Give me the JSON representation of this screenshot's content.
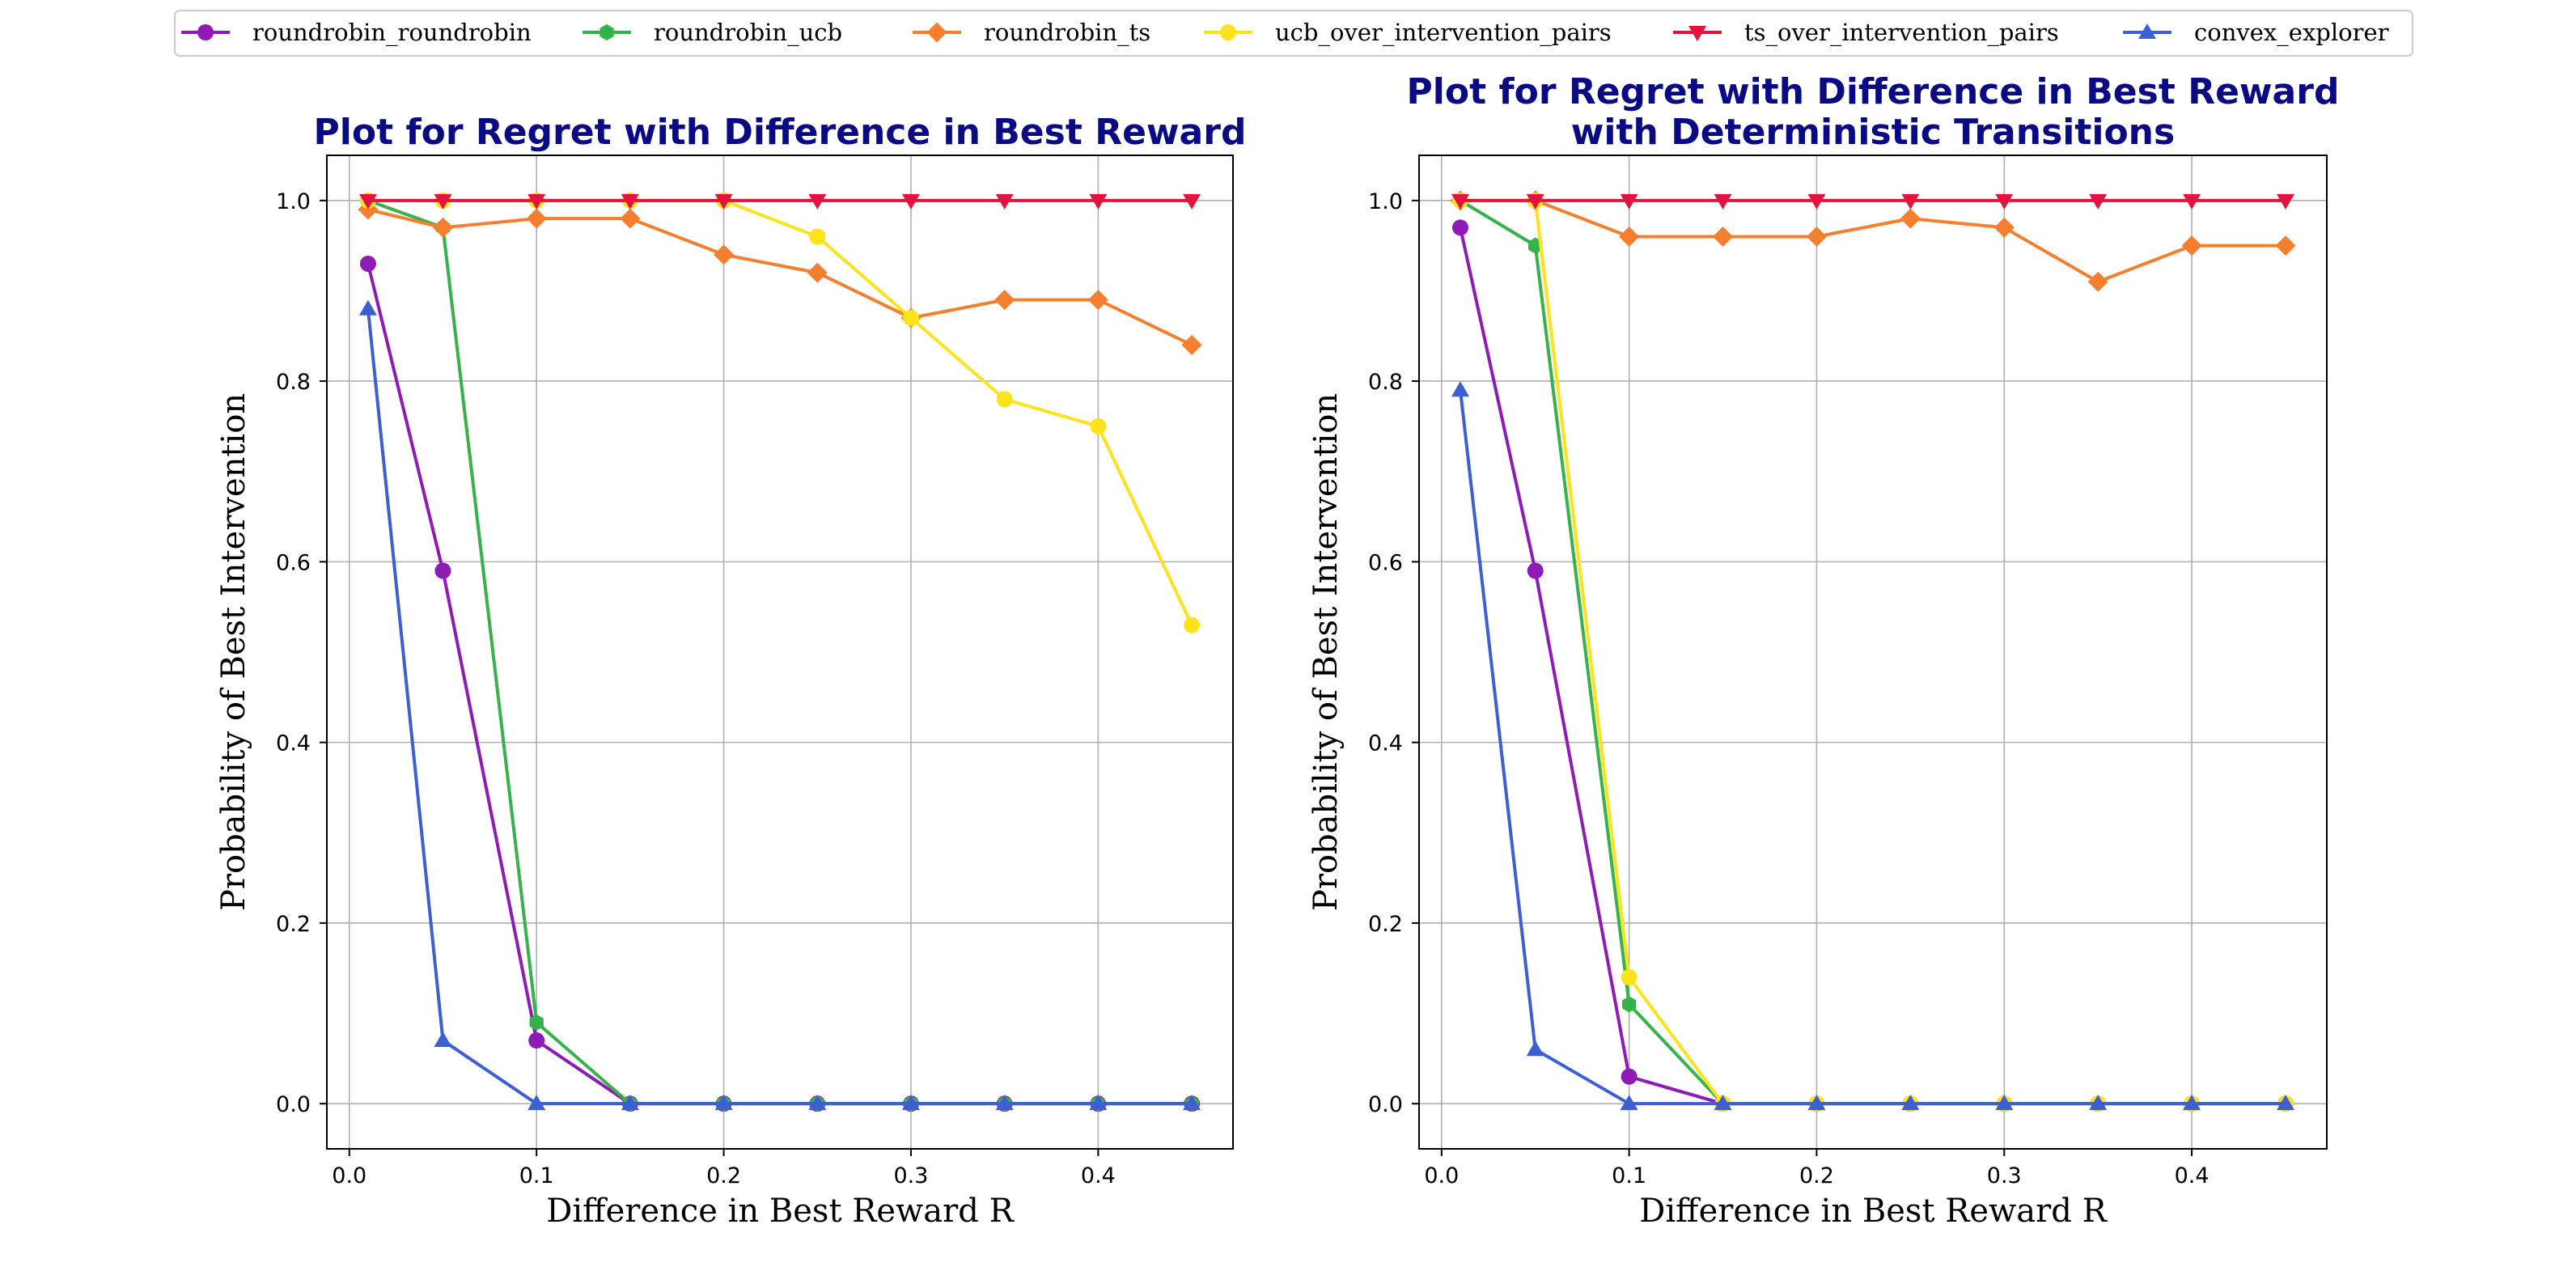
{
  "legend": {
    "entries": [
      {
        "name": "roundrobin_roundrobin",
        "color": "#8e1bb5",
        "marker": "circle"
      },
      {
        "name": "roundrobin_ucb",
        "color": "#36b24a",
        "marker": "hexagon"
      },
      {
        "name": "roundrobin_ts",
        "color": "#f57f2e",
        "marker": "diamond"
      },
      {
        "name": "ucb_over_intervention_pairs",
        "color": "#fde31c",
        "marker": "circle"
      },
      {
        "name": "ts_over_intervention_pairs",
        "color": "#e3133f",
        "marker": "triangle-down"
      },
      {
        "name": "convex_explorer",
        "color": "#3d5fd4",
        "marker": "triangle-up"
      }
    ],
    "placement": "top-center"
  },
  "chart_data": [
    {
      "type": "line",
      "title": "Plot for Regret with Difference in Best Reward",
      "title_lines": [
        "Plot for Regret with Difference in Best Reward"
      ],
      "title_color": "#0a0a85",
      "xlabel": "Difference in Best Reward R",
      "ylabel": "Probability of Best Intervention",
      "xlim": [
        -0.012,
        0.472
      ],
      "ylim": [
        -0.05,
        1.05
      ],
      "xticks": [
        0.0,
        0.1,
        0.2,
        0.3,
        0.4
      ],
      "xtick_labels": [
        "0.0",
        "0.1",
        "0.2",
        "0.3",
        "0.4"
      ],
      "yticks": [
        0.0,
        0.2,
        0.4,
        0.6,
        0.8,
        1.0
      ],
      "ytick_labels": [
        "0.0",
        "0.2",
        "0.4",
        "0.6",
        "0.8",
        "1.0"
      ],
      "grid": true,
      "x": [
        0.01,
        0.05,
        0.1,
        0.15,
        0.2,
        0.25,
        0.3,
        0.35,
        0.4,
        0.45
      ],
      "series": [
        {
          "name": "roundrobin_roundrobin",
          "values": [
            0.93,
            0.59,
            0.07,
            0.0,
            0.0,
            0.0,
            0.0,
            0.0,
            0.0,
            0.0
          ]
        },
        {
          "name": "roundrobin_ucb",
          "values": [
            1.0,
            0.97,
            0.09,
            0.0,
            0.0,
            0.0,
            0.0,
            0.0,
            0.0,
            0.0
          ]
        },
        {
          "name": "roundrobin_ts",
          "values": [
            0.99,
            0.97,
            0.98,
            0.98,
            0.94,
            0.92,
            0.87,
            0.89,
            0.89,
            0.84
          ]
        },
        {
          "name": "ucb_over_intervention_pairs",
          "values": [
            1.0,
            1.0,
            1.0,
            1.0,
            1.0,
            0.96,
            0.87,
            0.78,
            0.75,
            0.53
          ]
        },
        {
          "name": "ts_over_intervention_pairs",
          "values": [
            1.0,
            1.0,
            1.0,
            1.0,
            1.0,
            1.0,
            1.0,
            1.0,
            1.0,
            1.0
          ]
        },
        {
          "name": "convex_explorer",
          "values": [
            0.88,
            0.07,
            0.0,
            0.0,
            0.0,
            0.0,
            0.0,
            0.0,
            0.0,
            0.0
          ]
        }
      ]
    },
    {
      "type": "line",
      "title": "Plot for Regret with Difference in Best Reward with Deterministic Transitions",
      "title_lines": [
        "Plot for Regret with Difference in Best Reward",
        "with Deterministic Transitions"
      ],
      "title_color": "#0a0a85",
      "xlabel": "Difference in Best Reward R",
      "ylabel": "Probability of Best Intervention",
      "xlim": [
        -0.012,
        0.472
      ],
      "ylim": [
        -0.05,
        1.05
      ],
      "xticks": [
        0.0,
        0.1,
        0.2,
        0.3,
        0.4
      ],
      "xtick_labels": [
        "0.0",
        "0.1",
        "0.2",
        "0.3",
        "0.4"
      ],
      "yticks": [
        0.0,
        0.2,
        0.4,
        0.6,
        0.8,
        1.0
      ],
      "ytick_labels": [
        "0.0",
        "0.2",
        "0.4",
        "0.6",
        "0.8",
        "1.0"
      ],
      "grid": true,
      "x": [
        0.01,
        0.05,
        0.1,
        0.15,
        0.2,
        0.25,
        0.3,
        0.35,
        0.4,
        0.45
      ],
      "series": [
        {
          "name": "roundrobin_roundrobin",
          "values": [
            0.97,
            0.59,
            0.03,
            0.0,
            0.0,
            0.0,
            0.0,
            0.0,
            0.0,
            0.0
          ]
        },
        {
          "name": "roundrobin_ucb",
          "values": [
            1.0,
            0.95,
            0.11,
            0.0,
            0.0,
            0.0,
            0.0,
            0.0,
            0.0,
            0.0
          ]
        },
        {
          "name": "roundrobin_ts",
          "values": [
            1.0,
            1.0,
            0.96,
            0.96,
            0.96,
            0.98,
            0.97,
            0.91,
            0.95,
            0.95
          ]
        },
        {
          "name": "ucb_over_intervention_pairs",
          "values": [
            1.0,
            1.0,
            0.14,
            0.0,
            0.0,
            0.0,
            0.0,
            0.0,
            0.0,
            0.0
          ]
        },
        {
          "name": "ts_over_intervention_pairs",
          "values": [
            1.0,
            1.0,
            1.0,
            1.0,
            1.0,
            1.0,
            1.0,
            1.0,
            1.0,
            1.0
          ]
        },
        {
          "name": "convex_explorer",
          "values": [
            0.79,
            0.06,
            0.0,
            0.0,
            0.0,
            0.0,
            0.0,
            0.0,
            0.0,
            0.0
          ]
        }
      ]
    }
  ]
}
